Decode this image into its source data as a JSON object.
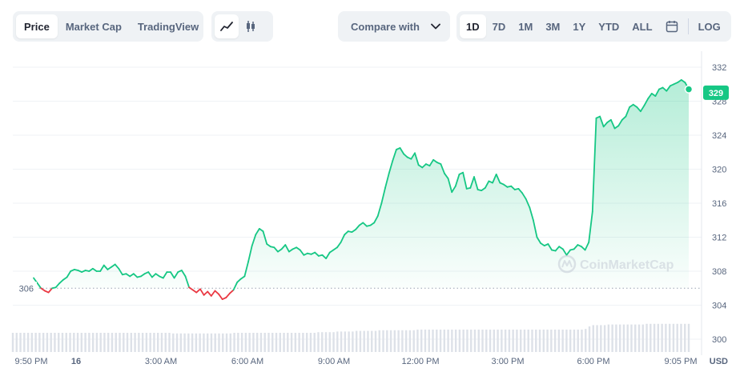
{
  "toolbar": {
    "type_tabs": [
      "Price",
      "Market Cap",
      "TradingView"
    ],
    "active_type": "Price",
    "chart_icons": [
      "line-chart-icon",
      "candlestick-icon"
    ],
    "compare_label": "Compare with",
    "ranges": [
      "1D",
      "7D",
      "1M",
      "3M",
      "1Y",
      "YTD",
      "ALL"
    ],
    "active_range": "1D",
    "calendar_icon": "calendar-icon",
    "log_label": "LOG"
  },
  "watermark": "CoinMarketCap",
  "colors": {
    "up": "#16c784",
    "down": "#ea3943",
    "fill_top": "#bff0d8",
    "grid": "#eff2f5",
    "axis_text": "#58667e"
  },
  "chart_data": {
    "type": "area",
    "x_ticks": [
      "9:50 PM",
      "16",
      "3:00 AM",
      "6:00 AM",
      "9:00 AM",
      "12:00 PM",
      "3:00 PM",
      "6:00 PM",
      "9:05 PM"
    ],
    "x_unit_label": "USD",
    "y_ticks": [
      300,
      304,
      308,
      312,
      316,
      320,
      324,
      328,
      332
    ],
    "ylim": [
      298.5,
      333.5
    ],
    "reference_price": 306,
    "current_price": 329,
    "price_series": [
      307.2,
      306.6,
      306.0,
      305.7,
      305.5,
      306.0,
      306.1,
      306.6,
      307.0,
      307.3,
      308.0,
      308.2,
      308.1,
      307.9,
      308.1,
      308.0,
      308.3,
      308.0,
      308.0,
      308.7,
      308.2,
      308.5,
      308.8,
      308.3,
      307.6,
      307.7,
      307.4,
      307.7,
      307.3,
      307.4,
      307.7,
      307.9,
      307.3,
      307.7,
      307.4,
      307.2,
      307.9,
      307.9,
      307.2,
      307.9,
      308.1,
      307.4,
      306.1,
      305.8,
      305.5,
      305.9,
      305.2,
      305.6,
      305.1,
      305.7,
      305.3,
      304.7,
      304.9,
      305.4,
      305.8,
      306.7,
      307.1,
      307.4,
      309.1,
      311.0,
      312.3,
      313.0,
      312.7,
      311.2,
      310.9,
      310.8,
      310.3,
      310.6,
      311.1,
      310.3,
      310.6,
      310.8,
      310.5,
      309.9,
      310.1,
      310.0,
      310.2,
      309.8,
      309.9,
      309.5,
      310.2,
      310.5,
      310.8,
      311.4,
      312.3,
      312.7,
      312.6,
      312.9,
      313.4,
      313.7,
      313.3,
      313.4,
      313.7,
      314.5,
      316.0,
      317.8,
      319.5,
      321.0,
      322.3,
      322.5,
      321.8,
      321.4,
      321.2,
      321.9,
      320.5,
      320.2,
      320.6,
      320.4,
      321.1,
      320.8,
      320.6,
      319.5,
      318.9,
      317.3,
      318.0,
      319.4,
      319.6,
      317.7,
      317.8,
      319.1,
      317.6,
      317.5,
      317.8,
      318.6,
      318.4,
      319.4,
      318.4,
      318.2,
      317.9,
      318.0,
      317.6,
      317.7,
      317.2,
      316.5,
      315.5,
      314.0,
      312.0,
      311.3,
      311.0,
      311.2,
      310.5,
      310.4,
      310.9,
      310.6,
      309.9,
      310.5,
      310.6,
      311.1,
      310.9,
      310.5,
      311.4,
      315.0,
      326.0,
      326.2,
      325.0,
      325.5,
      325.8,
      324.8,
      325.1,
      325.8,
      326.2,
      327.3,
      327.6,
      327.3,
      326.8,
      327.5,
      328.3,
      328.9,
      328.6,
      329.4,
      329.6,
      329.2,
      329.8,
      330.0,
      330.2,
      330.5,
      330.2,
      329.4
    ],
    "volume_series": [
      0.6,
      0.6,
      0.6,
      0.6,
      0.6,
      0.6,
      0.6,
      0.6,
      0.6,
      0.6,
      0.6,
      0.6,
      0.6,
      0.6,
      0.6,
      0.6,
      0.6,
      0.6,
      0.6,
      0.6,
      0.6,
      0.6,
      0.6,
      0.6,
      0.6,
      0.6,
      0.6,
      0.6,
      0.6,
      0.6,
      0.6,
      0.6,
      0.6,
      0.6,
      0.6,
      0.6,
      0.6,
      0.6,
      0.6,
      0.6,
      0.6,
      0.6,
      0.58,
      0.58,
      0.58,
      0.58,
      0.58,
      0.58,
      0.58,
      0.58,
      0.58,
      0.58,
      0.58,
      0.58,
      0.58,
      0.58,
      0.58,
      0.58,
      0.6,
      0.6,
      0.6,
      0.6,
      0.6,
      0.6,
      0.6,
      0.6,
      0.6,
      0.6,
      0.6,
      0.6,
      0.6,
      0.6,
      0.6,
      0.6,
      0.6,
      0.6,
      0.6,
      0.6,
      0.6,
      0.6,
      0.62,
      0.62,
      0.62,
      0.62,
      0.62,
      0.64,
      0.64,
      0.64,
      0.64,
      0.64,
      0.66,
      0.66,
      0.66,
      0.66,
      0.66,
      0.66,
      0.68,
      0.68,
      0.68,
      0.68,
      0.68,
      0.68,
      0.68,
      0.68,
      0.68,
      0.68,
      0.7,
      0.7,
      0.7,
      0.7,
      0.7,
      0.7,
      0.7,
      0.7,
      0.7,
      0.7,
      0.7,
      0.7,
      0.7,
      0.7,
      0.7,
      0.7,
      0.7,
      0.7,
      0.7,
      0.7,
      0.7,
      0.7,
      0.7,
      0.7,
      0.7,
      0.7,
      0.7,
      0.7,
      0.7,
      0.7,
      0.7,
      0.7,
      0.7,
      0.7,
      0.7,
      0.7,
      0.7,
      0.7,
      0.7,
      0.7,
      0.7,
      0.7,
      0.7,
      0.7,
      0.72,
      0.8,
      0.84,
      0.84,
      0.84,
      0.84,
      0.86,
      0.86,
      0.86,
      0.86,
      0.86,
      0.86,
      0.86,
      0.86,
      0.86,
      0.86,
      0.88,
      0.88,
      0.88,
      0.88,
      0.88,
      0.88,
      0.88,
      0.88,
      0.88,
      0.88,
      0.88,
      0.88
    ]
  }
}
